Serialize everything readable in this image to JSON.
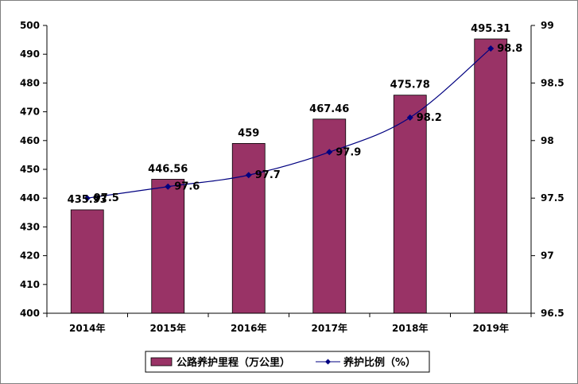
{
  "chart_data": {
    "type": "bar+line",
    "categories": [
      "2014年",
      "2015年",
      "2016年",
      "2017年",
      "2018年",
      "2019年"
    ],
    "series": [
      {
        "name": "公路养护里程（万公里）",
        "type": "bar",
        "axis": "left",
        "values": [
          435.93,
          446.56,
          459,
          467.46,
          475.78,
          495.31
        ],
        "labels": [
          "435.93",
          "446.56",
          "459",
          "467.46",
          "475.78",
          "495.31"
        ],
        "color": "#993366"
      },
      {
        "name": "养护比例（%）",
        "type": "line",
        "axis": "right",
        "values": [
          97.5,
          97.6,
          97.7,
          97.9,
          98.2,
          98.8
        ],
        "labels": [
          "97.5",
          "97.6",
          "97.7",
          "97.9",
          "98.2",
          "98.8"
        ],
        "color": "#000080"
      }
    ],
    "y_left": {
      "min": 400,
      "max": 500,
      "step": 10,
      "ticks": [
        "400",
        "410",
        "420",
        "430",
        "440",
        "450",
        "460",
        "470",
        "480",
        "490",
        "500"
      ]
    },
    "y_right": {
      "min": 96.5,
      "max": 99,
      "step": 0.5,
      "ticks": [
        "96.5",
        "97",
        "97.5",
        "98",
        "98.5",
        "99"
      ]
    },
    "legend_position": "bottom",
    "grid": false
  }
}
